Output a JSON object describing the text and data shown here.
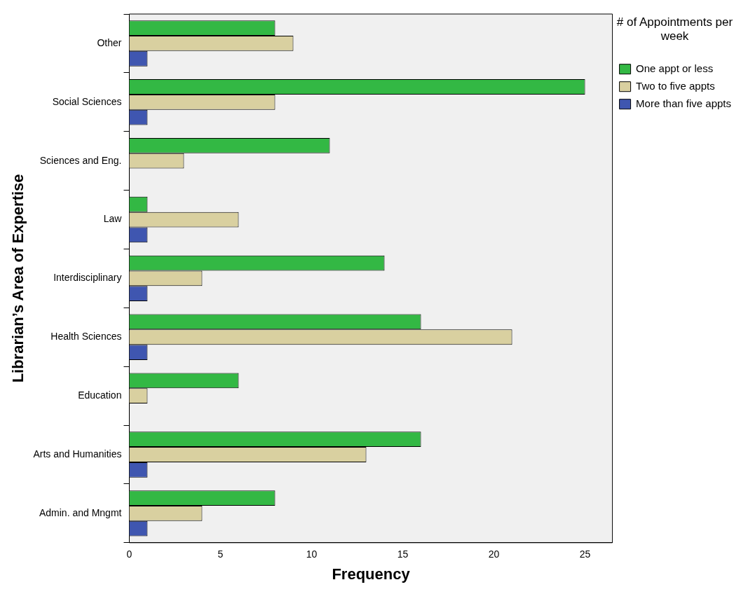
{
  "chart_data": {
    "type": "bar",
    "orientation": "horizontal",
    "xlabel": "Frequency",
    "ylabel": "Librarian’s Area of Expertise",
    "legend_title": "# of Appointments per week",
    "legend": "top right",
    "categories": [
      "Other",
      "Social Sciences",
      "Sciences and Eng.",
      "Law",
      "Interdisciplinary",
      "Health Sciences",
      "Education",
      "Arts and Humanities",
      "Admin. and Mngmt"
    ],
    "series": [
      {
        "name": "One appt or less",
        "color": "#33b844",
        "values": [
          8,
          25,
          11,
          1,
          14,
          16,
          6,
          16,
          8
        ]
      },
      {
        "name": "Two to five appts",
        "color": "#d9d0a0",
        "values": [
          9,
          8,
          3,
          6,
          4,
          21,
          1,
          13,
          4
        ]
      },
      {
        "name": "More than five appts",
        "color": "#3f56b0",
        "values": [
          1,
          1,
          null,
          1,
          1,
          1,
          null,
          1,
          1
        ]
      }
    ],
    "xlim": [
      0,
      26.5
    ],
    "xticks": [
      0,
      5,
      10,
      15,
      20,
      25
    ],
    "grid": false
  }
}
